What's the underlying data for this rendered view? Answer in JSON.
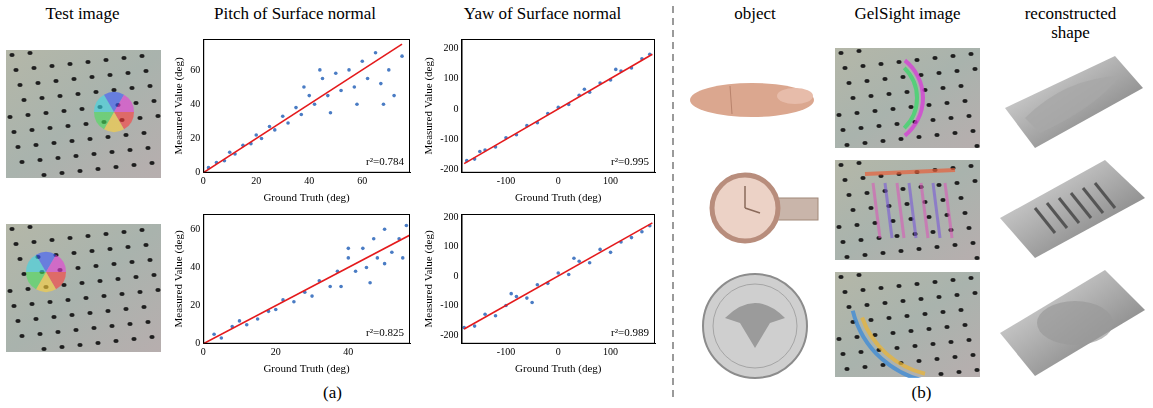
{
  "figure": {
    "panel_a": {
      "label": "(a)",
      "heads": [
        "Test image",
        "Pitch of Surface normal",
        "Yaw of Surface normal"
      ]
    },
    "panel_b": {
      "label": "(b)",
      "heads": [
        "object",
        "GelSight image",
        "reconstructed shape"
      ]
    }
  },
  "chart_data": [
    {
      "type": "scatter",
      "x_label": "Ground Truth (deg)",
      "y_label": "Measured Value (deg)",
      "xlim": [
        0,
        78
      ],
      "xticks": [
        0,
        20,
        40,
        60
      ],
      "ylim": [
        0,
        78
      ],
      "yticks": [
        0,
        20,
        40,
        60
      ],
      "grid": false,
      "annotations": [
        "r²=0.784"
      ],
      "series": [
        {
          "type": "scatter",
          "color": "#4a7cc4",
          "x": [
            2,
            5,
            8,
            10,
            12,
            15,
            18,
            20,
            22,
            25,
            27,
            30,
            32,
            35,
            37,
            40,
            42,
            45,
            47,
            50,
            52,
            55,
            57,
            60,
            62,
            65,
            67,
            70,
            72,
            75,
            48,
            58,
            68,
            44,
            38
          ],
          "y": [
            3,
            6,
            7,
            12,
            11,
            16,
            17,
            22,
            20,
            27,
            25,
            33,
            29,
            38,
            34,
            45,
            40,
            55,
            45,
            58,
            48,
            60,
            50,
            65,
            55,
            70,
            52,
            60,
            45,
            68,
            35,
            40,
            40,
            60,
            50
          ]
        },
        {
          "type": "line",
          "color": "#e41a1c",
          "x": [
            0,
            75
          ],
          "y": [
            0,
            75
          ]
        }
      ]
    },
    {
      "type": "scatter",
      "x_label": "Ground Truth (deg)",
      "y_label": "Measured Value (deg)",
      "xlim": [
        -185,
        185
      ],
      "xticks": [
        -100,
        0,
        100
      ],
      "ylim": [
        -210,
        230
      ],
      "yticks": [
        -200,
        -100,
        0,
        100,
        200
      ],
      "grid": false,
      "annotations": [
        "r²=0.995"
      ],
      "series": [
        {
          "type": "scatter",
          "color": "#4a7cc4",
          "x": [
            -175,
            -160,
            -140,
            -120,
            -100,
            -80,
            -60,
            -40,
            -20,
            0,
            20,
            40,
            60,
            80,
            100,
            120,
            140,
            160,
            175,
            -150,
            50,
            110
          ],
          "y": [
            -170,
            -165,
            -135,
            -125,
            -95,
            -85,
            -55,
            -45,
            -15,
            5,
            15,
            45,
            55,
            85,
            95,
            125,
            135,
            165,
            180,
            -140,
            65,
            130
          ]
        },
        {
          "type": "line",
          "color": "#e41a1c",
          "x": [
            -180,
            180
          ],
          "y": [
            -180,
            180
          ]
        }
      ]
    },
    {
      "type": "scatter",
      "x_label": "Ground Truth (deg)",
      "y_label": "Measured Value (deg)",
      "xlim": [
        0,
        57
      ],
      "xticks": [
        0,
        20,
        40
      ],
      "ylim": [
        0,
        68
      ],
      "yticks": [
        0,
        20,
        40,
        60
      ],
      "grid": false,
      "annotations": [
        "r²=0.825"
      ],
      "series": [
        {
          "type": "scatter",
          "color": "#4a7cc4",
          "x": [
            3,
            5,
            8,
            10,
            12,
            15,
            18,
            20,
            22,
            25,
            28,
            30,
            32,
            35,
            37,
            38,
            40,
            42,
            44,
            45,
            47,
            48,
            50,
            50,
            52,
            54,
            55,
            56,
            46,
            40
          ],
          "y": [
            5,
            3,
            9,
            12,
            10,
            13,
            17,
            18,
            23,
            22,
            27,
            25,
            33,
            30,
            38,
            30,
            45,
            38,
            50,
            40,
            55,
            45,
            60,
            42,
            48,
            55,
            45,
            62,
            32,
            50
          ]
        },
        {
          "type": "line",
          "color": "#e41a1c",
          "x": [
            0,
            57
          ],
          "y": [
            0,
            57
          ]
        }
      ]
    },
    {
      "type": "scatter",
      "x_label": "Ground Truth (deg)",
      "y_label": "Measured Value (deg)",
      "xlim": [
        -185,
        185
      ],
      "xticks": [
        -100,
        0,
        100
      ],
      "ylim": [
        -230,
        210
      ],
      "yticks": [
        -200,
        -100,
        0,
        100,
        200
      ],
      "grid": false,
      "annotations": [
        "r²=0.989"
      ],
      "series": [
        {
          "type": "scatter",
          "color": "#4a7cc4",
          "x": [
            -180,
            -160,
            -140,
            -120,
            -100,
            -80,
            -60,
            -40,
            -20,
            0,
            20,
            40,
            60,
            80,
            100,
            120,
            140,
            160,
            175,
            -90,
            30,
            -50
          ],
          "y": [
            -175,
            -170,
            -130,
            -135,
            -100,
            -70,
            -75,
            -30,
            -25,
            10,
            5,
            50,
            45,
            90,
            80,
            115,
            130,
            150,
            170,
            -60,
            60,
            -90
          ]
        },
        {
          "type": "line",
          "color": "#e41a1c",
          "x": [
            -180,
            180
          ],
          "y": [
            -180,
            180
          ]
        }
      ]
    }
  ]
}
